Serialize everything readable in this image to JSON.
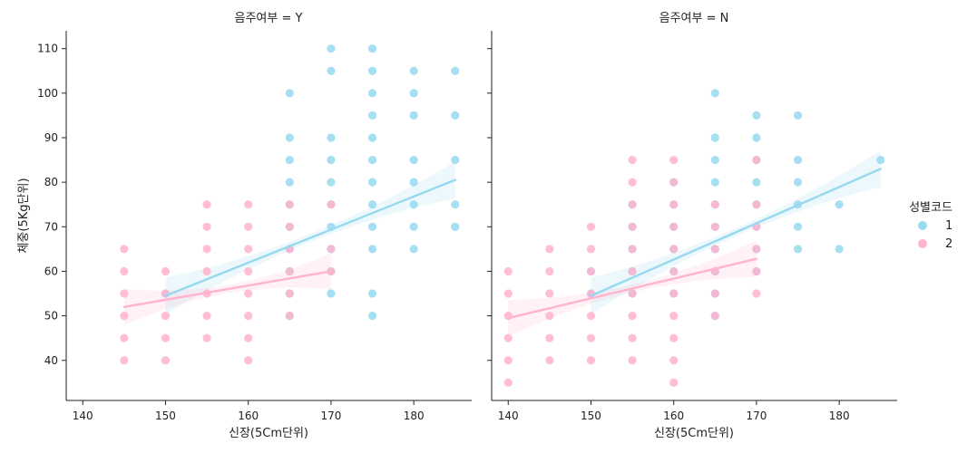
{
  "chart_data": {
    "type": "scatter",
    "title": "",
    "xlabel": "신장(5Cm단위)",
    "ylabel": "체중(5Kg단위)",
    "xlim": [
      138,
      187
    ],
    "ylim": [
      31,
      114
    ],
    "xticks": [
      140,
      150,
      160,
      170,
      180
    ],
    "yticks": [
      40,
      50,
      60,
      70,
      80,
      90,
      100,
      110
    ],
    "legend": {
      "title": "성별코드",
      "placement": "right",
      "entries": [
        {
          "label": "1",
          "color": "#97d9ee"
        },
        {
          "label": "2",
          "color": "#ffb3cc"
        }
      ]
    },
    "panels": [
      {
        "title": "음주여부 = Y",
        "series": [
          {
            "name": "1",
            "color": "#97d9ee",
            "points": [
              [
                150,
                55
              ],
              [
                165,
                50
              ],
              [
                165,
                55
              ],
              [
                165,
                60
              ],
              [
                165,
                65
              ],
              [
                165,
                70
              ],
              [
                165,
                75
              ],
              [
                165,
                80
              ],
              [
                165,
                85
              ],
              [
                165,
                90
              ],
              [
                165,
                100
              ],
              [
                170,
                55
              ],
              [
                170,
                60
              ],
              [
                170,
                65
              ],
              [
                170,
                70
              ],
              [
                170,
                75
              ],
              [
                170,
                80
              ],
              [
                170,
                85
              ],
              [
                170,
                90
              ],
              [
                170,
                105
              ],
              [
                170,
                110
              ],
              [
                175,
                50
              ],
              [
                175,
                55
              ],
              [
                175,
                65
              ],
              [
                175,
                70
              ],
              [
                175,
                75
              ],
              [
                175,
                80
              ],
              [
                175,
                85
              ],
              [
                175,
                90
              ],
              [
                175,
                95
              ],
              [
                175,
                100
              ],
              [
                175,
                105
              ],
              [
                175,
                110
              ],
              [
                180,
                65
              ],
              [
                180,
                70
              ],
              [
                180,
                75
              ],
              [
                180,
                80
              ],
              [
                180,
                85
              ],
              [
                180,
                95
              ],
              [
                180,
                100
              ],
              [
                180,
                105
              ],
              [
                185,
                70
              ],
              [
                185,
                75
              ],
              [
                185,
                85
              ],
              [
                185,
                95
              ],
              [
                185,
                105
              ]
            ],
            "fit": {
              "x": [
                150,
                185
              ],
              "y": [
                54.5,
                80.5
              ]
            }
          },
          {
            "name": "2",
            "color": "#ffb3cc",
            "points": [
              [
                145,
                40
              ],
              [
                145,
                45
              ],
              [
                145,
                50
              ],
              [
                145,
                55
              ],
              [
                145,
                60
              ],
              [
                145,
                65
              ],
              [
                150,
                40
              ],
              [
                150,
                45
              ],
              [
                150,
                50
              ],
              [
                150,
                55
              ],
              [
                150,
                60
              ],
              [
                155,
                45
              ],
              [
                155,
                50
              ],
              [
                155,
                55
              ],
              [
                155,
                60
              ],
              [
                155,
                65
              ],
              [
                155,
                70
              ],
              [
                155,
                75
              ],
              [
                160,
                40
              ],
              [
                160,
                45
              ],
              [
                160,
                50
              ],
              [
                160,
                55
              ],
              [
                160,
                60
              ],
              [
                160,
                65
              ],
              [
                160,
                70
              ],
              [
                160,
                75
              ],
              [
                165,
                50
              ],
              [
                165,
                55
              ],
              [
                165,
                60
              ],
              [
                165,
                65
              ],
              [
                165,
                70
              ],
              [
                165,
                75
              ],
              [
                170,
                60
              ],
              [
                170,
                65
              ],
              [
                170,
                75
              ]
            ],
            "fit": {
              "x": [
                145,
                170
              ],
              "y": [
                52,
                60
              ]
            }
          }
        ]
      },
      {
        "title": "음주여부 = N",
        "series": [
          {
            "name": "1",
            "color": "#97d9ee",
            "points": [
              [
                150,
                55
              ],
              [
                150,
                60
              ],
              [
                155,
                55
              ],
              [
                155,
                60
              ],
              [
                155,
                65
              ],
              [
                155,
                70
              ],
              [
                155,
                75
              ],
              [
                160,
                55
              ],
              [
                160,
                60
              ],
              [
                160,
                65
              ],
              [
                160,
                70
              ],
              [
                160,
                75
              ],
              [
                160,
                80
              ],
              [
                165,
                50
              ],
              [
                165,
                55
              ],
              [
                165,
                60
              ],
              [
                165,
                65
              ],
              [
                165,
                70
              ],
              [
                165,
                75
              ],
              [
                165,
                80
              ],
              [
                165,
                85
              ],
              [
                165,
                90
              ],
              [
                165,
                100
              ],
              [
                170,
                60
              ],
              [
                170,
                65
              ],
              [
                170,
                70
              ],
              [
                170,
                75
              ],
              [
                170,
                80
              ],
              [
                170,
                85
              ],
              [
                170,
                90
              ],
              [
                170,
                95
              ],
              [
                175,
                65
              ],
              [
                175,
                70
              ],
              [
                175,
                75
              ],
              [
                175,
                80
              ],
              [
                175,
                85
              ],
              [
                175,
                95
              ],
              [
                180,
                65
              ],
              [
                180,
                75
              ],
              [
                185,
                85
              ]
            ],
            "fit": {
              "x": [
                150,
                185
              ],
              "y": [
                54.5,
                83
              ]
            }
          },
          {
            "name": "2",
            "color": "#ffb3cc",
            "points": [
              [
                140,
                35
              ],
              [
                140,
                40
              ],
              [
                140,
                45
              ],
              [
                140,
                50
              ],
              [
                140,
                55
              ],
              [
                140,
                60
              ],
              [
                145,
                40
              ],
              [
                145,
                45
              ],
              [
                145,
                50
              ],
              [
                145,
                55
              ],
              [
                145,
                60
              ],
              [
                145,
                65
              ],
              [
                150,
                40
              ],
              [
                150,
                45
              ],
              [
                150,
                50
              ],
              [
                150,
                55
              ],
              [
                150,
                60
              ],
              [
                150,
                65
              ],
              [
                150,
                70
              ],
              [
                155,
                40
              ],
              [
                155,
                45
              ],
              [
                155,
                50
              ],
              [
                155,
                55
              ],
              [
                155,
                60
              ],
              [
                155,
                65
              ],
              [
                155,
                70
              ],
              [
                155,
                75
              ],
              [
                155,
                80
              ],
              [
                155,
                85
              ],
              [
                160,
                35
              ],
              [
                160,
                40
              ],
              [
                160,
                45
              ],
              [
                160,
                50
              ],
              [
                160,
                55
              ],
              [
                160,
                60
              ],
              [
                160,
                65
              ],
              [
                160,
                70
              ],
              [
                160,
                75
              ],
              [
                160,
                80
              ],
              [
                160,
                85
              ],
              [
                165,
                50
              ],
              [
                165,
                55
              ],
              [
                165,
                60
              ],
              [
                165,
                65
              ],
              [
                165,
                70
              ],
              [
                165,
                75
              ],
              [
                170,
                55
              ],
              [
                170,
                60
              ],
              [
                170,
                65
              ],
              [
                170,
                70
              ],
              [
                170,
                75
              ],
              [
                170,
                85
              ]
            ],
            "fit": {
              "x": [
                140,
                170
              ],
              "y": [
                49.5,
                62.8
              ]
            }
          }
        ]
      }
    ]
  }
}
